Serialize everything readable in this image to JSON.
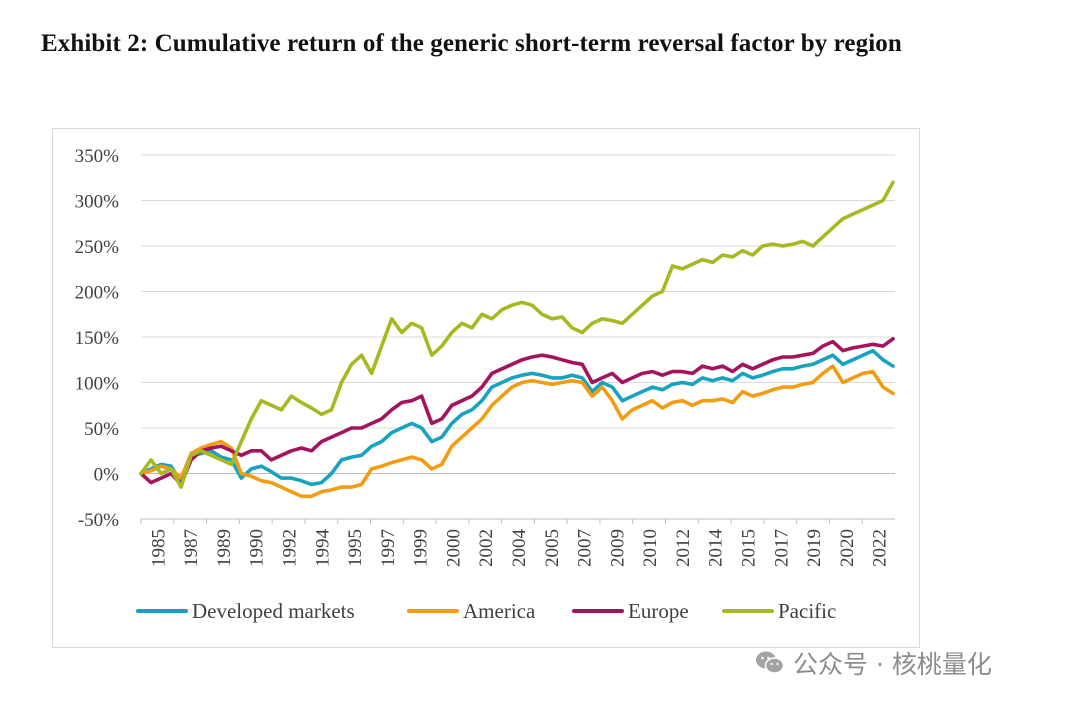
{
  "title": "Exhibit 2: Cumulative return of the generic short-term reversal factor by region",
  "watermark": "公众号 · 核桃量化",
  "chart_data": {
    "type": "line",
    "title": "Exhibit 2: Cumulative return of the generic short-term reversal factor by region",
    "xlabel": "",
    "ylabel": "",
    "ylim": [
      -50,
      350
    ],
    "yticks": [
      -50,
      0,
      50,
      100,
      150,
      200,
      250,
      300,
      350
    ],
    "ytick_labels": [
      "-50%",
      "0%",
      "50%",
      "100%",
      "150%",
      "200%",
      "250%",
      "300%",
      "350%"
    ],
    "xlim": [
      1985,
      2022.6
    ],
    "xtick_labels": [
      "1985",
      "1987",
      "1989",
      "1990",
      "1992",
      "1994",
      "1995",
      "1997",
      "1999",
      "2000",
      "2002",
      "2004",
      "2005",
      "2007",
      "2009",
      "2010",
      "2012",
      "2014",
      "2015",
      "2017",
      "2019",
      "2020",
      "2022"
    ],
    "grid": true,
    "legend_position": "bottom",
    "series": [
      {
        "name": "Developed markets",
        "color": "#17a2c0",
        "x": [
          1985,
          1985.5,
          1986,
          1986.5,
          1987,
          1987.5,
          1988,
          1988.5,
          1989,
          1989.5,
          1990,
          1990.5,
          1991,
          1991.5,
          1992,
          1992.5,
          1993,
          1993.5,
          1994,
          1994.5,
          1995,
          1995.5,
          1996,
          1996.5,
          1997,
          1997.5,
          1998,
          1998.5,
          1999,
          1999.5,
          2000,
          2000.5,
          2001,
          2001.5,
          2002,
          2002.5,
          2003,
          2003.5,
          2004,
          2004.5,
          2005,
          2005.5,
          2006,
          2006.5,
          2007,
          2007.5,
          2008,
          2008.5,
          2009,
          2009.5,
          2010,
          2010.5,
          2011,
          2011.5,
          2012,
          2012.5,
          2013,
          2013.5,
          2014,
          2014.5,
          2015,
          2015.5,
          2016,
          2016.5,
          2017,
          2017.5,
          2018,
          2018.5,
          2019,
          2019.5,
          2020,
          2020.5,
          2021,
          2021.5,
          2022,
          2022.5
        ],
        "values": [
          0,
          5,
          10,
          8,
          -10,
          20,
          22,
          25,
          18,
          15,
          -5,
          5,
          8,
          2,
          -5,
          -5,
          -8,
          -12,
          -10,
          0,
          15,
          18,
          20,
          30,
          35,
          45,
          50,
          55,
          50,
          35,
          40,
          55,
          65,
          70,
          80,
          95,
          100,
          105,
          108,
          110,
          108,
          105,
          105,
          108,
          105,
          90,
          100,
          95,
          80,
          85,
          90,
          95,
          92,
          98,
          100,
          98,
          105,
          102,
          105,
          102,
          110,
          105,
          108,
          112,
          115,
          115,
          118,
          120,
          125,
          130,
          120,
          125,
          130,
          135,
          125,
          118
        ]
      },
      {
        "name": "America",
        "color": "#f39c12",
        "x": [
          1985,
          1985.5,
          1986,
          1986.5,
          1987,
          1987.5,
          1988,
          1988.5,
          1989,
          1989.5,
          1990,
          1990.5,
          1991,
          1991.5,
          1992,
          1992.5,
          1993,
          1993.5,
          1994,
          1994.5,
          1995,
          1995.5,
          1996,
          1996.5,
          1997,
          1997.5,
          1998,
          1998.5,
          1999,
          1999.5,
          2000,
          2000.5,
          2001,
          2001.5,
          2002,
          2002.5,
          2003,
          2003.5,
          2004,
          2004.5,
          2005,
          2005.5,
          2006,
          2006.5,
          2007,
          2007.5,
          2008,
          2008.5,
          2009,
          2009.5,
          2010,
          2010.5,
          2011,
          2011.5,
          2012,
          2012.5,
          2013,
          2013.5,
          2014,
          2014.5,
          2015,
          2015.5,
          2016,
          2016.5,
          2017,
          2017.5,
          2018,
          2018.5,
          2019,
          2019.5,
          2020,
          2020.5,
          2021,
          2021.5,
          2022,
          2022.5
        ],
        "values": [
          0,
          3,
          8,
          5,
          -5,
          22,
          28,
          32,
          35,
          28,
          0,
          -3,
          -8,
          -10,
          -15,
          -20,
          -25,
          -25,
          -20,
          -18,
          -15,
          -15,
          -12,
          5,
          8,
          12,
          15,
          18,
          15,
          5,
          10,
          30,
          40,
          50,
          60,
          75,
          85,
          95,
          100,
          102,
          100,
          98,
          100,
          102,
          100,
          85,
          95,
          80,
          60,
          70,
          75,
          80,
          72,
          78,
          80,
          75,
          80,
          80,
          82,
          78,
          90,
          85,
          88,
          92,
          95,
          95,
          98,
          100,
          110,
          118,
          100,
          105,
          110,
          112,
          95,
          88
        ]
      },
      {
        "name": "Europe",
        "color": "#a3145d",
        "x": [
          1985,
          1985.5,
          1986,
          1986.5,
          1987,
          1987.5,
          1988,
          1988.5,
          1989,
          1989.5,
          1990,
          1990.5,
          1991,
          1991.5,
          1992,
          1992.5,
          1993,
          1993.5,
          1994,
          1994.5,
          1995,
          1995.5,
          1996,
          1996.5,
          1997,
          1997.5,
          1998,
          1998.5,
          1999,
          1999.5,
          2000,
          2000.5,
          2001,
          2001.5,
          2002,
          2002.5,
          2003,
          2003.5,
          2004,
          2004.5,
          2005,
          2005.5,
          2006,
          2006.5,
          2007,
          2007.5,
          2008,
          2008.5,
          2009,
          2009.5,
          2010,
          2010.5,
          2011,
          2011.5,
          2012,
          2012.5,
          2013,
          2013.5,
          2014,
          2014.5,
          2015,
          2015.5,
          2016,
          2016.5,
          2017,
          2017.5,
          2018,
          2018.5,
          2019,
          2019.5,
          2020,
          2020.5,
          2021,
          2021.5,
          2022,
          2022.5
        ],
        "values": [
          0,
          -10,
          -5,
          0,
          -12,
          15,
          25,
          28,
          30,
          25,
          20,
          25,
          25,
          15,
          20,
          25,
          28,
          25,
          35,
          40,
          45,
          50,
          50,
          55,
          60,
          70,
          78,
          80,
          85,
          55,
          60,
          75,
          80,
          85,
          95,
          110,
          115,
          120,
          125,
          128,
          130,
          128,
          125,
          122,
          120,
          100,
          105,
          110,
          100,
          105,
          110,
          112,
          108,
          112,
          112,
          110,
          118,
          115,
          118,
          112,
          120,
          115,
          120,
          125,
          128,
          128,
          130,
          132,
          140,
          145,
          135,
          138,
          140,
          142,
          140,
          148
        ]
      },
      {
        "name": "Pacific",
        "color": "#a8b820",
        "x": [
          1985,
          1985.5,
          1986,
          1986.5,
          1987,
          1987.5,
          1988,
          1988.5,
          1989,
          1989.5,
          1990,
          1990.5,
          1991,
          1991.5,
          1992,
          1992.5,
          1993,
          1993.5,
          1994,
          1994.5,
          1995,
          1995.5,
          1996,
          1996.5,
          1997,
          1997.5,
          1998,
          1998.5,
          1999,
          1999.5,
          2000,
          2000.5,
          2001,
          2001.5,
          2002,
          2002.5,
          2003,
          2003.5,
          2004,
          2004.5,
          2005,
          2005.5,
          2006,
          2006.5,
          2007,
          2007.5,
          2008,
          2008.5,
          2009,
          2009.5,
          2010,
          2010.5,
          2011,
          2011.5,
          2012,
          2012.5,
          2013,
          2013.5,
          2014,
          2014.5,
          2015,
          2015.5,
          2016,
          2016.5,
          2017,
          2017.5,
          2018,
          2018.5,
          2019,
          2019.5,
          2020,
          2020.5,
          2021,
          2021.5,
          2022,
          2022.5
        ],
        "values": [
          0,
          15,
          0,
          5,
          -15,
          20,
          25,
          20,
          15,
          10,
          35,
          60,
          80,
          75,
          70,
          85,
          78,
          72,
          65,
          70,
          100,
          120,
          130,
          110,
          140,
          170,
          155,
          165,
          160,
          130,
          140,
          155,
          165,
          160,
          175,
          170,
          180,
          185,
          188,
          185,
          175,
          170,
          172,
          160,
          155,
          165,
          170,
          168,
          165,
          175,
          185,
          195,
          200,
          228,
          225,
          230,
          235,
          232,
          240,
          238,
          245,
          240,
          250,
          252,
          250,
          252,
          255,
          250,
          260,
          270,
          280,
          285,
          290,
          295,
          300,
          320
        ]
      }
    ]
  }
}
